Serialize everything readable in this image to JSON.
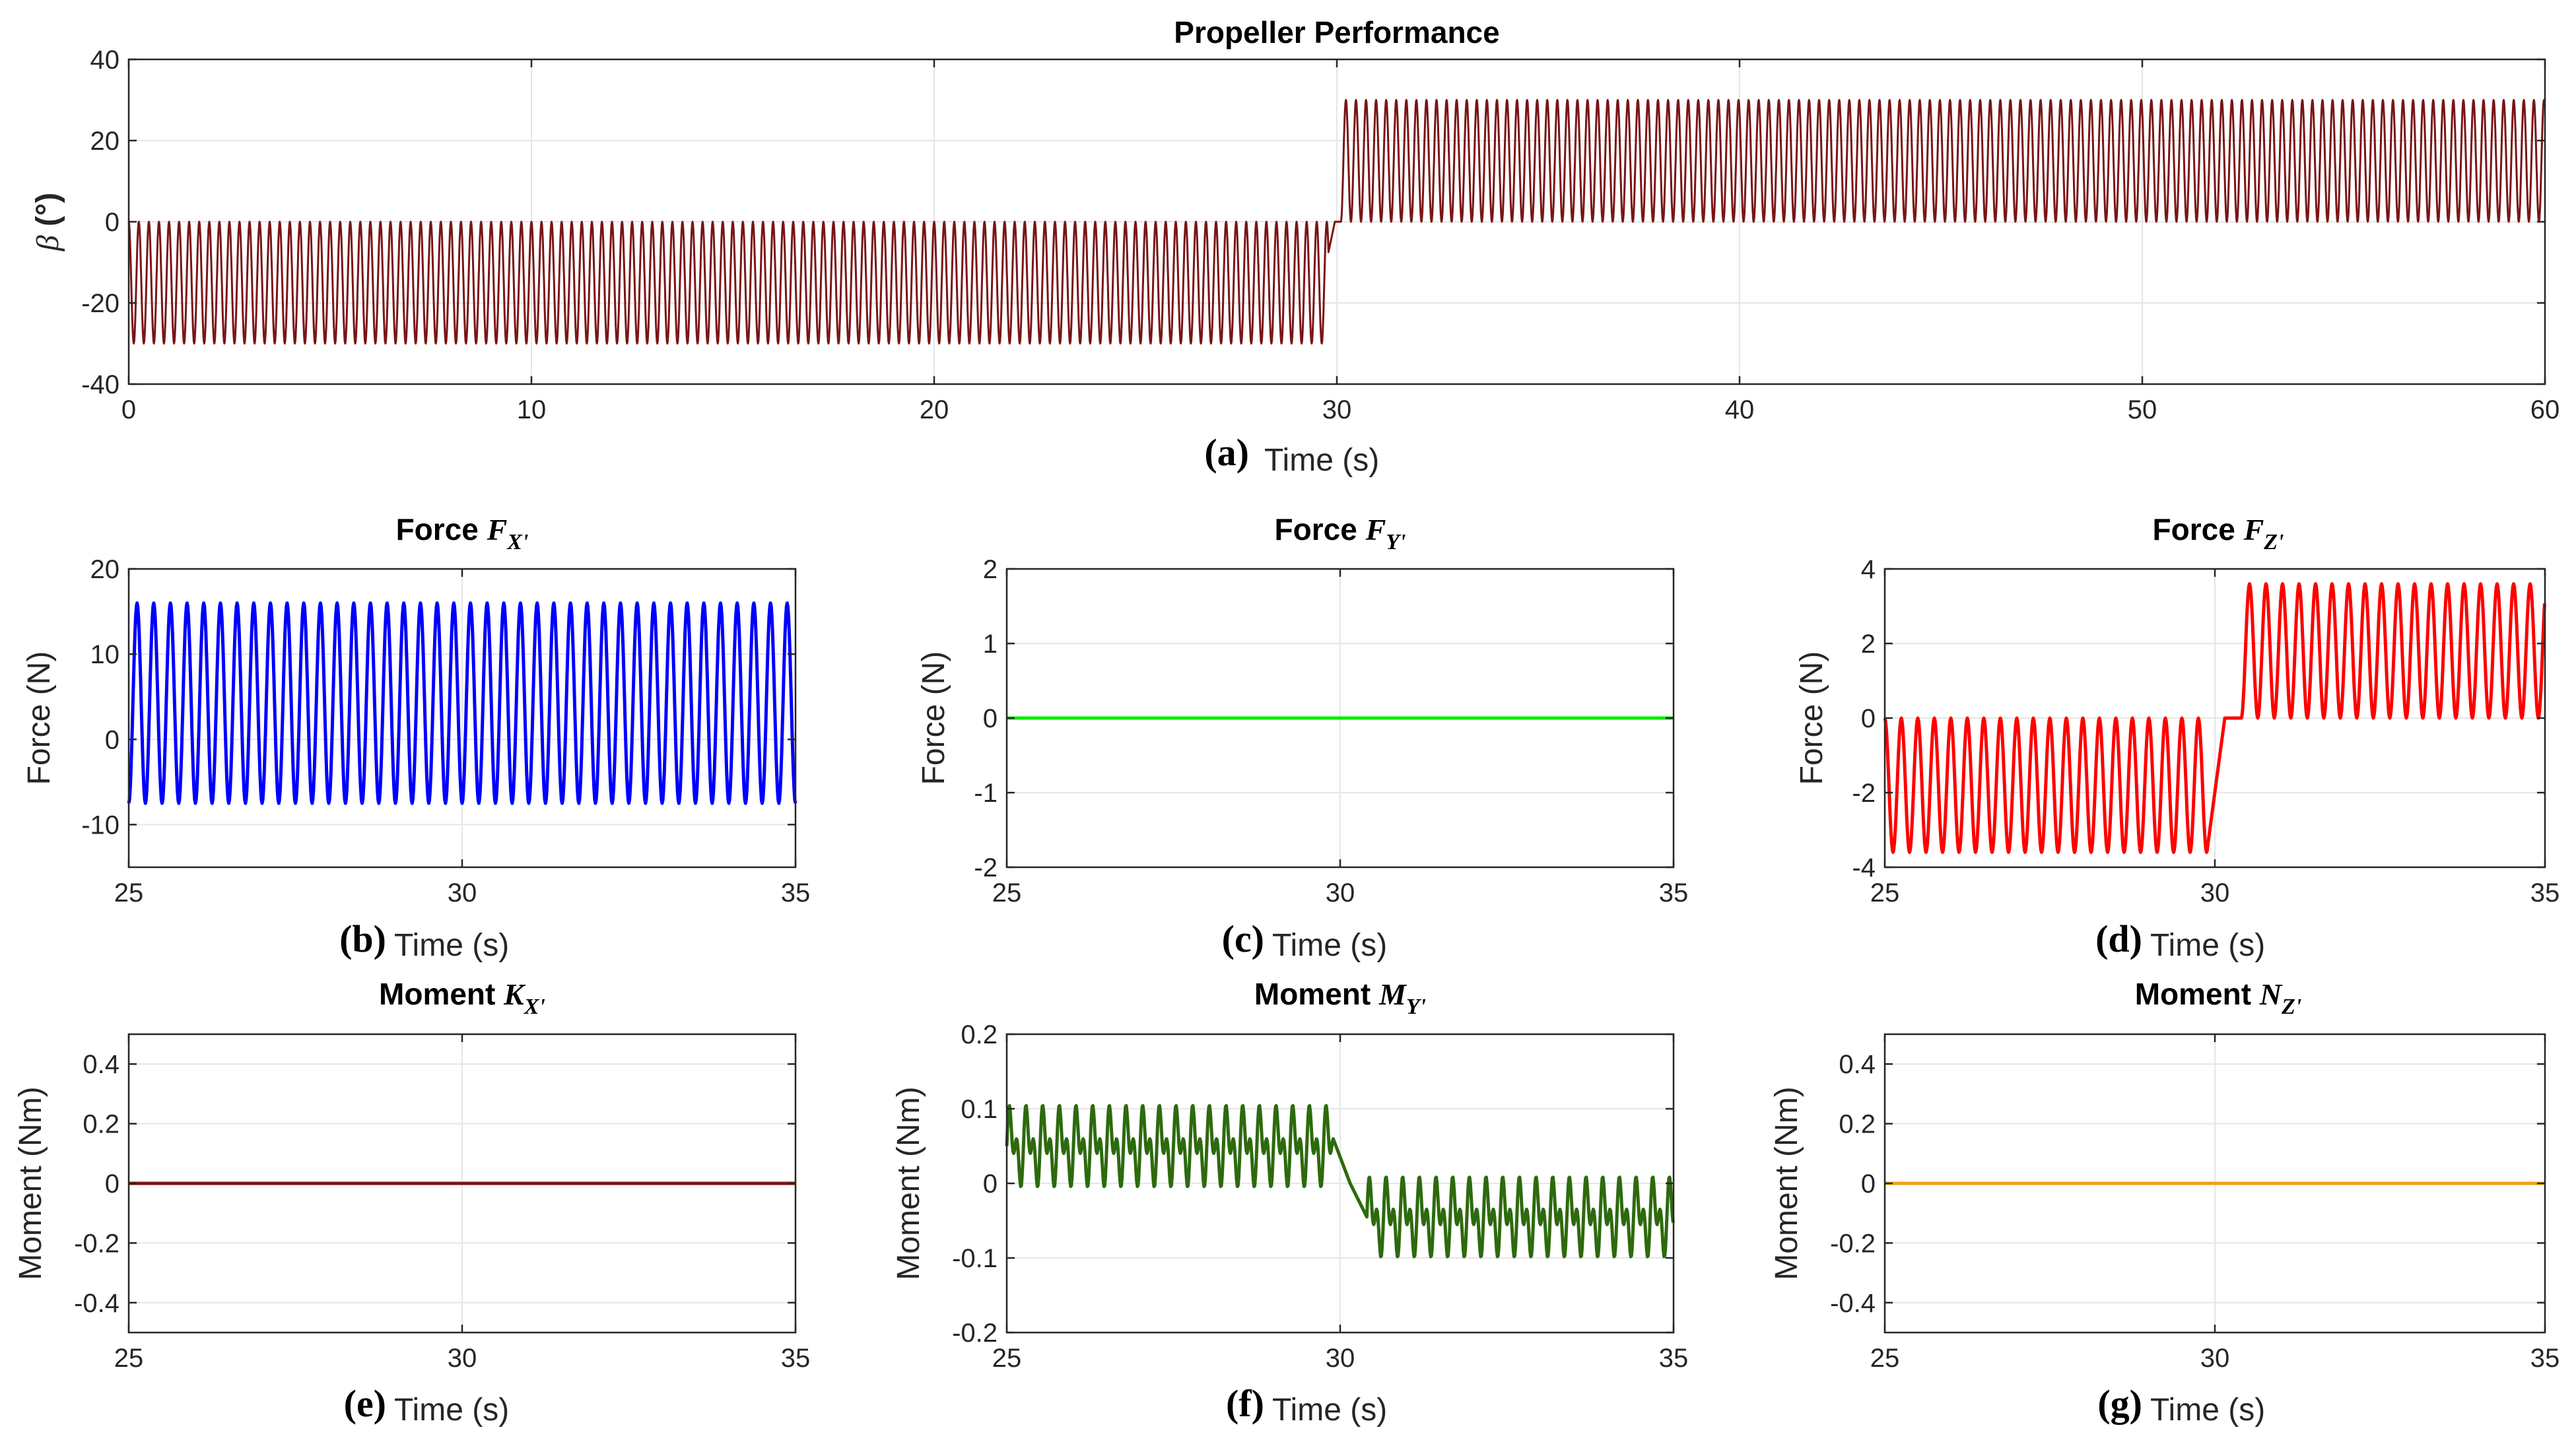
{
  "chart_data": [
    {
      "id": "a",
      "type": "line",
      "letter": "(a)",
      "title": "Propeller Performance",
      "title_main": "Propeller Performance",
      "xlabel": "Time (s)",
      "ylabel": "β (°)",
      "ylabel_sym": "β",
      "ylabel_rest": " (°)",
      "xlim": [
        0,
        60
      ],
      "ylim": [
        -40,
        40
      ],
      "xticks": [
        0,
        10,
        20,
        30,
        40,
        50,
        60
      ],
      "xtick_labels": [
        "0",
        "10",
        "20",
        "30",
        "40",
        "50",
        "60"
      ],
      "yticks": [
        -40,
        -20,
        0,
        20,
        40
      ],
      "ytick_labels": [
        "-40",
        "-20",
        "0",
        "20",
        "40"
      ],
      "grid": true,
      "series": [
        {
          "name": "beta",
          "color": "#7a1515",
          "description": "oscillates between -30 and 0 for t<30 s, between 0 and 30 for t>30 s",
          "segments": [
            {
              "t_start": 0,
              "t_end": 29.8,
              "min": -30,
              "max": 0,
              "frequency_hz": 4.0
            },
            {
              "t_start": 30.1,
              "t_end": 60,
              "min": 0,
              "max": 30,
              "frequency_hz": 4.0
            }
          ]
        }
      ]
    },
    {
      "id": "b",
      "type": "line",
      "letter": "(b)",
      "title": "Force F_X'",
      "title_main": "Force ",
      "title_sym": "F",
      "title_sub": "X'",
      "xlabel": "Time (s)",
      "ylabel": "Force (N)",
      "xlim": [
        25,
        35
      ],
      "ylim": [
        -15,
        20
      ],
      "xticks": [
        25,
        30,
        35
      ],
      "xtick_labels": [
        "25",
        "30",
        "35"
      ],
      "yticks": [
        -10,
        0,
        10,
        20
      ],
      "ytick_labels": [
        "-10",
        "0",
        "10",
        "20"
      ],
      "grid": true,
      "series": [
        {
          "name": "Fx",
          "color": "#0000ff",
          "segments": [
            {
              "t_start": 25,
              "t_end": 35,
              "min": -7.5,
              "max": 16,
              "frequency_hz": 4.0
            }
          ]
        }
      ]
    },
    {
      "id": "c",
      "type": "line",
      "letter": "(c)",
      "title": "Force F_Y'",
      "title_main": "Force ",
      "title_sym": "F",
      "title_sub": "Y'",
      "xlabel": "Time (s)",
      "ylabel": "Force (N)",
      "xlim": [
        25,
        35
      ],
      "ylim": [
        -2,
        2
      ],
      "xticks": [
        25,
        30,
        35
      ],
      "xtick_labels": [
        "25",
        "30",
        "35"
      ],
      "yticks": [
        -2,
        -1,
        0,
        1,
        2
      ],
      "ytick_labels": [
        "-2",
        "-1",
        "0",
        "1",
        "2"
      ],
      "grid": true,
      "series": [
        {
          "name": "Fy",
          "color": "#00ee00",
          "constant": 0
        }
      ]
    },
    {
      "id": "d",
      "type": "line",
      "letter": "(d)",
      "title": "Force F_Z'",
      "title_main": "Force ",
      "title_sym": "F",
      "title_sub": "Z'",
      "xlabel": "Time (s)",
      "ylabel": "Force (N)",
      "xlim": [
        25,
        35
      ],
      "ylim": [
        -4,
        4
      ],
      "xticks": [
        25,
        30,
        35
      ],
      "xtick_labels": [
        "25",
        "30",
        "35"
      ],
      "yticks": [
        -4,
        -2,
        0,
        2,
        4
      ],
      "ytick_labels": [
        "-4",
        "-2",
        "0",
        "2",
        "4"
      ],
      "grid": true,
      "series": [
        {
          "name": "Fz",
          "color": "#ff0000",
          "segments": [
            {
              "t_start": 25,
              "t_end": 29.9,
              "min": -3.6,
              "max": 0,
              "frequency_hz": 4.0
            },
            {
              "t_start": 30.4,
              "t_end": 35,
              "min": 0,
              "max": 3.6,
              "frequency_hz": 4.0
            }
          ]
        }
      ]
    },
    {
      "id": "e",
      "type": "line",
      "letter": "(e)",
      "title": "Moment K_X'",
      "title_main": "Moment ",
      "title_sym": "K",
      "title_sub": "X'",
      "xlabel": "Time (s)",
      "ylabel": "Moment (Nm)",
      "xlim": [
        25,
        35
      ],
      "ylim": [
        -0.5,
        0.5
      ],
      "xticks": [
        25,
        30,
        35
      ],
      "xtick_labels": [
        "25",
        "30",
        "35"
      ],
      "yticks": [
        -0.4,
        -0.2,
        0,
        0.2,
        0.4
      ],
      "ytick_labels": [
        "-0.4",
        "-0.2",
        "0",
        "0.2",
        "0.4"
      ],
      "grid": true,
      "series": [
        {
          "name": "Kx",
          "color": "#7a1515",
          "constant": 0
        }
      ]
    },
    {
      "id": "f",
      "type": "line",
      "letter": "(f)",
      "title": "Moment M_Y'",
      "title_main": "Moment ",
      "title_sym": "M",
      "title_sub": "Y'",
      "xlabel": "Time (s)",
      "ylabel": "Moment (Nm)",
      "xlim": [
        25,
        35
      ],
      "ylim": [
        -0.2,
        0.2
      ],
      "xticks": [
        25,
        30,
        35
      ],
      "xtick_labels": [
        "25",
        "30",
        "35"
      ],
      "yticks": [
        -0.2,
        -0.1,
        0,
        0.1,
        0.2
      ],
      "ytick_labels": [
        "-0.2",
        "-0.1",
        "0",
        "0.1",
        "0.2"
      ],
      "grid": true,
      "series": [
        {
          "name": "My",
          "color": "#2d6a0e",
          "segments": [
            {
              "t_start": 25,
              "t_end": 29.9,
              "min": -0.015,
              "max": 0.11,
              "frequency_hz": 4.0,
              "mid": 0.05,
              "mod": 0.03
            },
            {
              "t_start": 30.4,
              "t_end": 35,
              "min": -0.105,
              "max": 0.018,
              "frequency_hz": 4.0,
              "mid": -0.045,
              "mod": 0.03
            }
          ]
        }
      ]
    },
    {
      "id": "g",
      "type": "line",
      "letter": "(g)",
      "title": "Moment N_Z'",
      "title_main": "Moment ",
      "title_sym": "N",
      "title_sub": "Z'",
      "xlabel": "Time (s)",
      "ylabel": "Moment (Nm)",
      "xlim": [
        25,
        35
      ],
      "ylim": [
        -0.5,
        0.5
      ],
      "xticks": [
        25,
        30,
        35
      ],
      "xtick_labels": [
        "25",
        "30",
        "35"
      ],
      "yticks": [
        -0.4,
        -0.2,
        0,
        0.2,
        0.4
      ],
      "ytick_labels": [
        "-0.4",
        "-0.2",
        "0",
        "0.2",
        "0.4"
      ],
      "grid": true,
      "series": [
        {
          "name": "Nz",
          "color": "#f2a20d",
          "constant": 0
        }
      ]
    }
  ]
}
